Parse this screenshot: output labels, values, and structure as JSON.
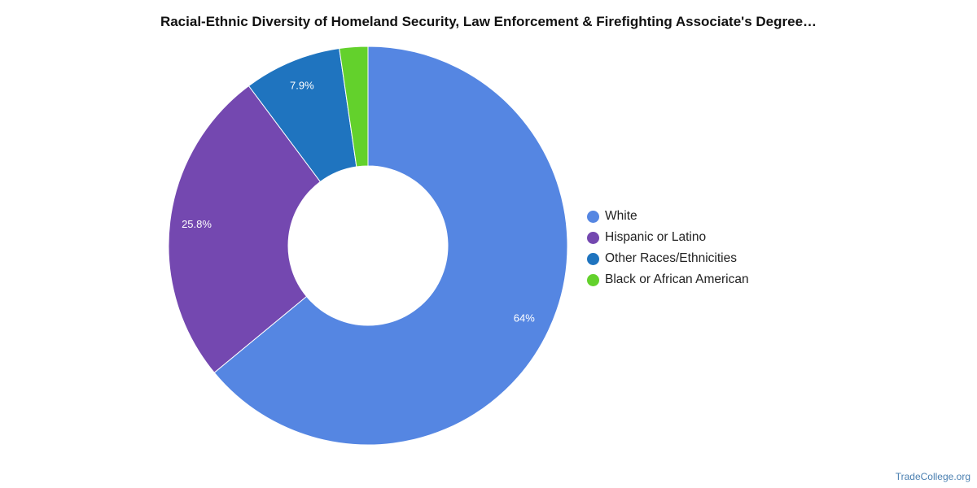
{
  "chart_data": {
    "type": "pie",
    "variant": "donut",
    "title": "Racial-Ethnic Diversity of Homeland Security, Law Enforcement & Firefighting Associate's Degree…",
    "series": [
      {
        "name": "White",
        "value": 64.0,
        "label": "64%",
        "color": "#5586e2"
      },
      {
        "name": "Hispanic or Latino",
        "value": 25.8,
        "label": "25.8%",
        "color": "#7448b0"
      },
      {
        "name": "Other Races/Ethnicities",
        "value": 7.9,
        "label": "7.9%",
        "color": "#1f74bf"
      },
      {
        "name": "Black or African American",
        "value": 2.3,
        "label": "",
        "color": "#63d12c"
      }
    ],
    "legend": {
      "position": "right"
    }
  },
  "footer": {
    "source": "TradeCollege.org"
  }
}
